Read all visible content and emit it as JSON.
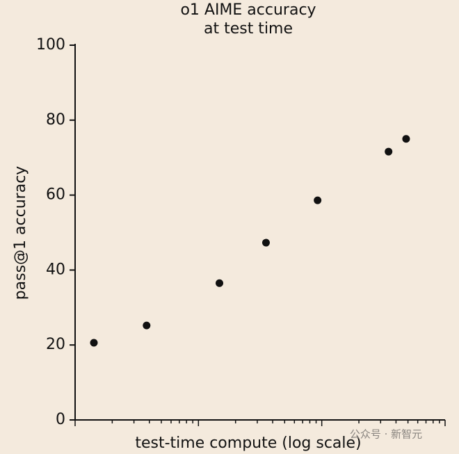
{
  "chart_data": {
    "type": "scatter",
    "title": "o1 AIME accuracy",
    "subtitle": "at test time",
    "x_label": "test-time compute (log scale)",
    "y_label": "pass@1 accuracy",
    "x_scale": "log",
    "color": "#111111",
    "x": [
      1.42,
      3.8,
      14.8,
      35.3,
      92.5,
      348,
      483
    ],
    "values": [
      20.6,
      25.2,
      36.5,
      47.3,
      58.6,
      71.6,
      75.0
    ],
    "xlim": [
      1,
      1000
    ],
    "xticks": [
      1,
      2,
      3,
      4,
      5,
      6,
      7,
      8,
      9,
      10,
      20,
      30,
      40,
      50,
      60,
      70,
      80,
      90,
      100,
      200,
      300,
      400,
      500,
      600,
      700,
      800,
      900,
      1000
    ],
    "ylim": [
      0,
      100
    ],
    "yticks": [
      0,
      20,
      40,
      60,
      80,
      100
    ],
    "watermark": "公众号 · 新智元"
  }
}
